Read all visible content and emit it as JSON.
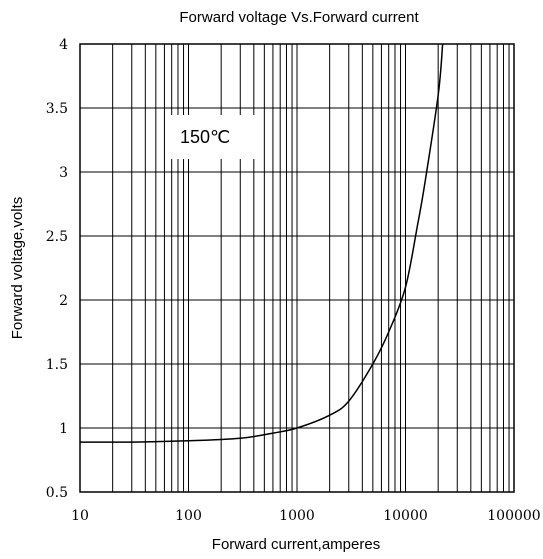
{
  "chart_data": {
    "type": "line",
    "title": "Forward voltage Vs.Forward current",
    "xlabel": "Forward current,amperes",
    "ylabel": "Forward voltage,volts",
    "x_scale": "log",
    "xlim": [
      10,
      100000
    ],
    "ylim": [
      0.5,
      4
    ],
    "grid": true,
    "x_ticks": [
      {
        "value": 10,
        "label": "10"
      },
      {
        "value": 100,
        "label": "100"
      },
      {
        "value": 1000,
        "label": "1000"
      },
      {
        "value": 10000,
        "label": "10000"
      },
      {
        "value": 100000,
        "label": "100000"
      }
    ],
    "y_ticks": [
      {
        "value": 0.5,
        "label": "0.5"
      },
      {
        "value": 1,
        "label": "1"
      },
      {
        "value": 1.5,
        "label": "1.5"
      },
      {
        "value": 2,
        "label": "2"
      },
      {
        "value": 2.5,
        "label": "2.5"
      },
      {
        "value": 3,
        "label": "3"
      },
      {
        "value": 3.5,
        "label": "3.5"
      },
      {
        "value": 4,
        "label": "4"
      }
    ],
    "annotation": "150℃",
    "series": [
      {
        "color": "#000000",
        "x": [
          10,
          30,
          100,
          300,
          600,
          1000,
          2000,
          3000,
          5000,
          7000,
          10000,
          13000,
          15000,
          20000,
          22000
        ],
        "y": [
          0.89,
          0.89,
          0.9,
          0.92,
          0.96,
          1.0,
          1.1,
          1.21,
          1.5,
          1.75,
          2.1,
          2.6,
          2.9,
          3.6,
          4.0
        ]
      }
    ]
  }
}
